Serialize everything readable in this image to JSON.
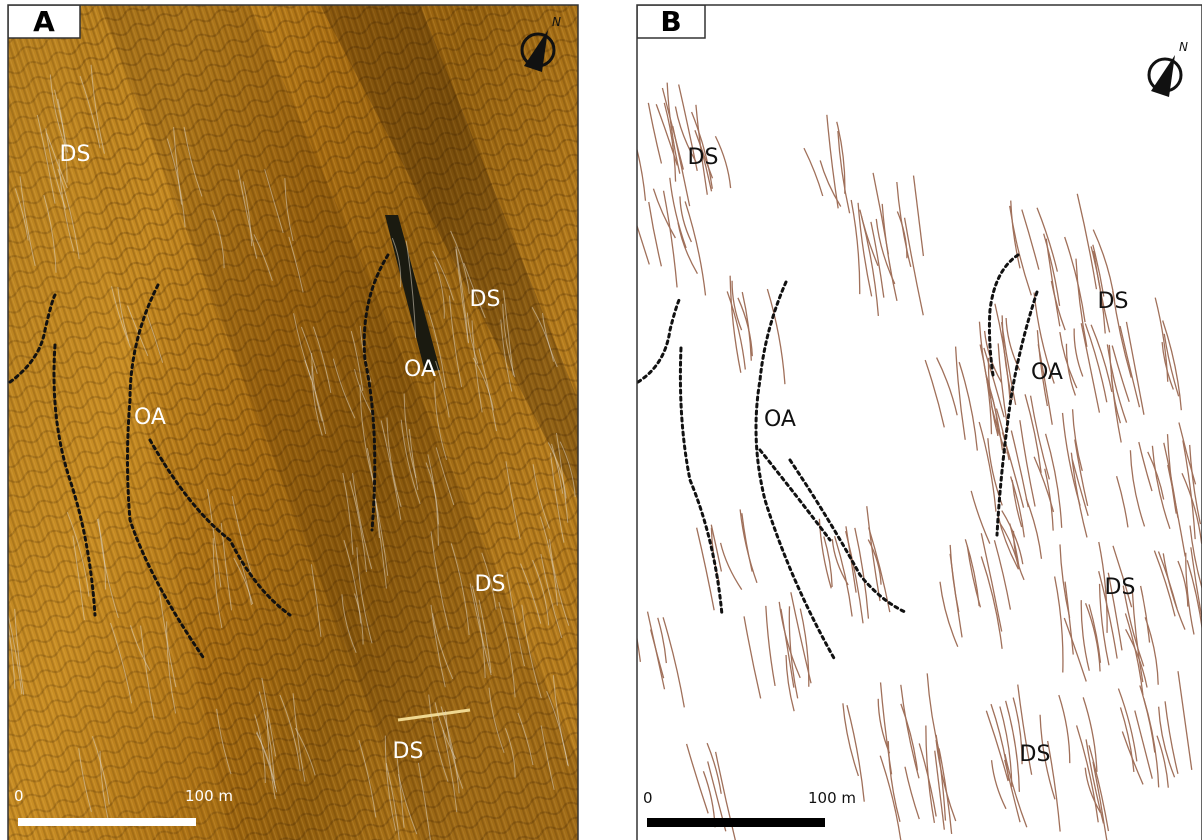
{
  "panels": [
    {
      "label": "A",
      "north": "N",
      "annotations": [
        "DS",
        "OA",
        "OA",
        "DS",
        "DS",
        "DS"
      ],
      "scale": {
        "start": "0",
        "end": "100 m"
      }
    },
    {
      "label": "B",
      "north": "N",
      "annotations": [
        "DS",
        "DS",
        "OA",
        "OA",
        "DS",
        "DS"
      ],
      "scale": {
        "start": "0",
        "end": "100 m"
      }
    }
  ]
}
